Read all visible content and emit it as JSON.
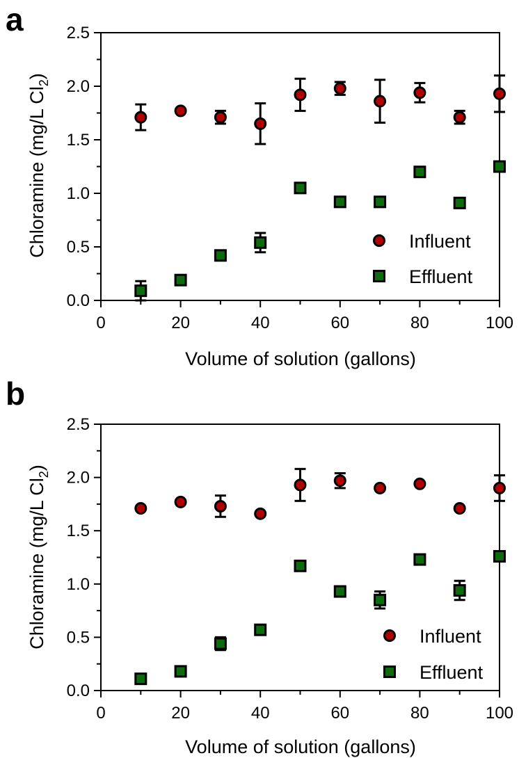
{
  "colors": {
    "influent_fill": "#b30000",
    "effluent_fill": "#0d6b0d",
    "marker_edge": "#000000"
  },
  "chart_data": [
    {
      "panel_label": "a",
      "type": "scatter",
      "xlabel": "Volume of solution (gallons)",
      "ylabel_main": "Chloramine (mg/L Cl",
      "ylabel_sub": "2",
      "ylabel_close": ")",
      "xlim": [
        0,
        100
      ],
      "ylim": [
        0,
        2.5
      ],
      "x_ticks": [
        0,
        20,
        40,
        60,
        80,
        100
      ],
      "x_ticklabels": [
        "0",
        "20",
        "40",
        "60",
        "80",
        "100"
      ],
      "y_ticks": [
        0,
        0.5,
        1,
        1.5,
        2,
        2.5
      ],
      "y_ticklabels": [
        "0.0",
        "0.5",
        "1.0",
        "1.5",
        "2.0",
        "2.5"
      ],
      "legend_position": "bottom-right",
      "series": [
        {
          "name": "Influent",
          "marker": "circle",
          "x": [
            10,
            20,
            30,
            40,
            50,
            60,
            70,
            80,
            90,
            100
          ],
          "y": [
            1.71,
            1.77,
            1.71,
            1.65,
            1.92,
            1.98,
            1.86,
            1.94,
            1.71,
            1.93
          ],
          "err": [
            0.12,
            0.02,
            0.06,
            0.19,
            0.15,
            0.06,
            0.2,
            0.09,
            0.06,
            0.17
          ]
        },
        {
          "name": "Effluent",
          "marker": "square",
          "x": [
            10,
            20,
            30,
            40,
            50,
            60,
            70,
            80,
            90,
            100
          ],
          "y": [
            0.09,
            0.19,
            0.42,
            0.54,
            1.05,
            0.92,
            0.92,
            1.2,
            0.91,
            1.25
          ],
          "err": [
            0.09,
            0.02,
            0.05,
            0.09,
            0.02,
            0.05,
            0.02,
            0.02,
            0.02,
            0.04
          ]
        }
      ]
    },
    {
      "panel_label": "b",
      "type": "scatter",
      "xlabel": "Volume of solution (gallons)",
      "ylabel_main": "Chloramine (mg/L Cl",
      "ylabel_sub": "2",
      "ylabel_close": ")",
      "xlim": [
        0,
        100
      ],
      "ylim": [
        0,
        2.5
      ],
      "x_ticks": [
        0,
        20,
        40,
        60,
        80,
        100
      ],
      "x_ticklabels": [
        "0",
        "20",
        "40",
        "60",
        "80",
        "100"
      ],
      "y_ticks": [
        0,
        0.5,
        1,
        1.5,
        2,
        2.5
      ],
      "y_ticklabels": [
        "0.0",
        "0.5",
        "1.0",
        "1.5",
        "2.0",
        "2.5"
      ],
      "legend_position": "bottom-right",
      "series": [
        {
          "name": "Influent",
          "marker": "circle",
          "x": [
            10,
            20,
            30,
            40,
            50,
            60,
            70,
            80,
            90,
            100
          ],
          "y": [
            1.71,
            1.77,
            1.73,
            1.66,
            1.93,
            1.97,
            1.9,
            1.94,
            1.71,
            1.9
          ],
          "err": [
            0.02,
            0.05,
            0.1,
            0.05,
            0.15,
            0.07,
            0.02,
            0.02,
            0.02,
            0.12
          ]
        },
        {
          "name": "Effluent",
          "marker": "square",
          "x": [
            10,
            20,
            30,
            40,
            50,
            60,
            70,
            80,
            90,
            100
          ],
          "y": [
            0.11,
            0.18,
            0.44,
            0.57,
            1.17,
            0.93,
            0.85,
            1.23,
            0.94,
            1.26
          ],
          "err": [
            0.04,
            0.02,
            0.06,
            0.02,
            0.02,
            0.02,
            0.08,
            0.02,
            0.09,
            0.02
          ]
        }
      ]
    }
  ]
}
